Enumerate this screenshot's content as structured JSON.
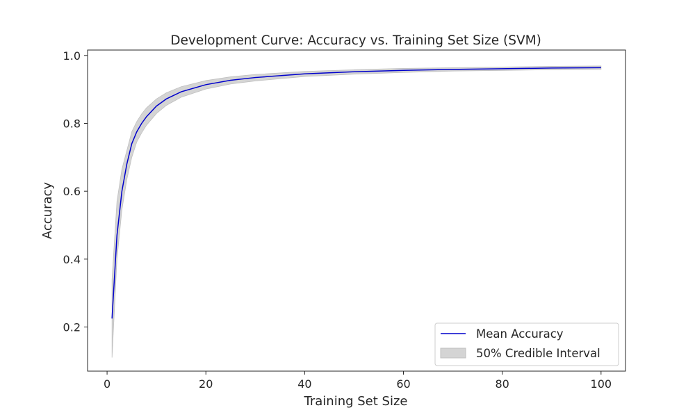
{
  "chart_data": {
    "type": "line",
    "title": "Development Curve: Accuracy vs. Training Set Size (SVM)",
    "xlabel": "Training Set Size",
    "ylabel": "Accuracy",
    "xlim": [
      -3.95,
      104.95
    ],
    "ylim": [
      0.07,
      1.016
    ],
    "xticks": [
      0,
      20,
      40,
      60,
      80,
      100
    ],
    "yticks": [
      0.2,
      0.4,
      0.6,
      0.8,
      1.0
    ],
    "grid": false,
    "legend_position": "lower-right",
    "colors": {
      "line": "#0000cc",
      "band": "#d4d4d4",
      "band_edge": "#c0c0c0"
    },
    "series": [
      {
        "name": "Mean Accuracy",
        "x": [
          1,
          2,
          3,
          4,
          5,
          6,
          7,
          8,
          10,
          12,
          15,
          20,
          25,
          30,
          40,
          50,
          60,
          70,
          80,
          90,
          100
        ],
        "y": [
          0.225,
          0.47,
          0.6,
          0.68,
          0.74,
          0.775,
          0.8,
          0.82,
          0.851,
          0.872,
          0.893,
          0.914,
          0.927,
          0.935,
          0.946,
          0.952,
          0.956,
          0.959,
          0.961,
          0.963,
          0.964
        ]
      }
    ],
    "interval": {
      "name": "50% Credible Interval",
      "x": [
        1,
        2,
        3,
        4,
        5,
        6,
        7,
        8,
        10,
        12,
        15,
        20,
        25,
        30,
        40,
        50,
        60,
        70,
        80,
        90,
        100
      ],
      "lower": [
        0.11,
        0.4,
        0.545,
        0.635,
        0.7,
        0.745,
        0.772,
        0.795,
        0.829,
        0.853,
        0.877,
        0.901,
        0.916,
        0.925,
        0.938,
        0.945,
        0.95,
        0.954,
        0.956,
        0.958,
        0.959
      ],
      "upper": [
        0.34,
        0.57,
        0.665,
        0.72,
        0.775,
        0.805,
        0.828,
        0.846,
        0.872,
        0.89,
        0.908,
        0.926,
        0.937,
        0.944,
        0.953,
        0.958,
        0.962,
        0.964,
        0.966,
        0.968,
        0.969
      ]
    }
  }
}
